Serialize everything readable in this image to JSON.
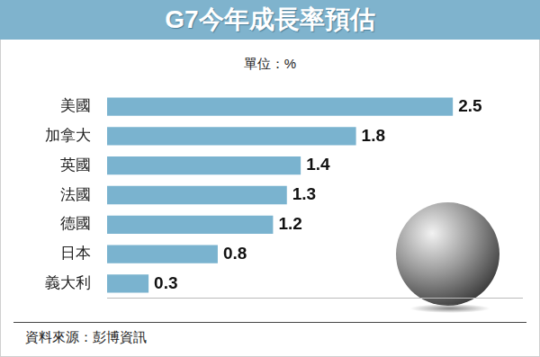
{
  "chart_data": {
    "type": "bar",
    "orientation": "horizontal",
    "title": "G7今年成長率預估",
    "subtitle": "單位：%",
    "source": "資料來源：彭博資訊",
    "categories": [
      "美國",
      "加拿大",
      "英國",
      "法國",
      "德國",
      "日本",
      "義大利"
    ],
    "values": [
      2.5,
      1.8,
      1.4,
      1.3,
      1.2,
      0.8,
      0.3
    ],
    "color": "#7ab3cf",
    "xlim": [
      0,
      3
    ],
    "data_labels": true,
    "tick_labels": "y",
    "grid": false
  }
}
